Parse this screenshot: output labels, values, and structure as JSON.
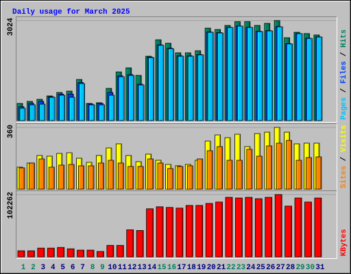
{
  "chart_data": [
    {
      "type": "bar",
      "title": "Daily usage for March 2025",
      "title_color": "#0000ff",
      "ylim": [
        0,
        3024
      ],
      "yticks": [
        3024
      ],
      "separator": " / ",
      "series": [
        {
          "name": "Hits",
          "color": "#00805c",
          "values": [
            518,
            580,
            642,
            745,
            849,
            890,
            1242,
            518,
            538,
            973,
            1470,
            1594,
            1366,
            1946,
            2443,
            2339,
            2049,
            2049,
            2111,
            2795,
            2753,
            2877,
            2990,
            2990,
            2877,
            2940,
            3024,
            2505,
            2670,
            2630,
            2588
          ]
        },
        {
          "name": "Files",
          "color": "#0040ff",
          "values": [
            420,
            520,
            580,
            720,
            800,
            800,
            1150,
            500,
            520,
            850,
            1350,
            1390,
            1100,
            1920,
            2290,
            2190,
            1960,
            1960,
            2000,
            2680,
            2660,
            2820,
            2860,
            2820,
            2700,
            2720,
            2840,
            2330,
            2630,
            2490,
            2530
          ]
        },
        {
          "name": "Pages",
          "color": "#00c0ff",
          "values": [
            373,
            476,
            497,
            704,
            766,
            704,
            1118,
            476,
            476,
            766,
            1325,
            1366,
            1077,
            1905,
            2277,
            2174,
            1946,
            1946,
            1988,
            2670,
            2650,
            2815,
            2857,
            2815,
            2691,
            2712,
            2836,
            2319,
            2629,
            2484,
            2526
          ]
        }
      ]
    },
    {
      "type": "bar",
      "ylim": [
        0,
        360
      ],
      "yticks": [
        360
      ],
      "separator": " / ",
      "series": [
        {
          "name": "Visits",
          "color": "#ffff00",
          "values": [
            128,
            152,
            196,
            192,
            208,
            212,
            180,
            156,
            196,
            240,
            264,
            196,
            160,
            204,
            168,
            144,
            136,
            144,
            168,
            280,
            316,
            300,
            320,
            248,
            324,
            332,
            360,
            332,
            264,
            268,
            268
          ]
        },
        {
          "name": "Sites",
          "color": "#ff8000",
          "values": [
            124,
            152,
            176,
            128,
            140,
            144,
            136,
            136,
            152,
            168,
            152,
            132,
            132,
            176,
            152,
            120,
            132,
            136,
            176,
            224,
            248,
            168,
            168,
            232,
            192,
            252,
            268,
            284,
            168,
            184,
            188
          ]
        }
      ]
    },
    {
      "type": "bar",
      "ylim": [
        0,
        102262
      ],
      "yticks": [
        102262
      ],
      "categories": [
        "1",
        "2",
        "3",
        "4",
        "5",
        "6",
        "7",
        "8",
        "9",
        "10",
        "11",
        "12",
        "13",
        "14",
        "15",
        "16",
        "17",
        "18",
        "19",
        "20",
        "21",
        "22",
        "23",
        "24",
        "25",
        "26",
        "27",
        "28",
        "29",
        "30",
        "31"
      ],
      "category_colors": [
        "#00805c",
        "#00805c",
        "#000080",
        "#000080",
        "#000080",
        "#000080",
        "#000080",
        "#00805c",
        "#00805c",
        "#000080",
        "#000080",
        "#000080",
        "#000080",
        "#000080",
        "#00805c",
        "#00805c",
        "#000080",
        "#000080",
        "#000080",
        "#000080",
        "#000080",
        "#00805c",
        "#00805c",
        "#000080",
        "#000080",
        "#000080",
        "#000080",
        "#000080",
        "#00805c",
        "#00805c",
        "#000080"
      ],
      "series": [
        {
          "name": "KBytes",
          "color": "#ff0000",
          "values": [
            10000,
            10000,
            14400,
            14400,
            15500,
            13300,
            11100,
            11100,
            8900,
            18900,
            18900,
            44400,
            43300,
            78900,
            82200,
            81100,
            80000,
            84400,
            84400,
            87700,
            90000,
            97700,
            96600,
            97700,
            95500,
            97700,
            102262,
            83300,
            96600,
            90000,
            96600
          ]
        }
      ]
    }
  ]
}
